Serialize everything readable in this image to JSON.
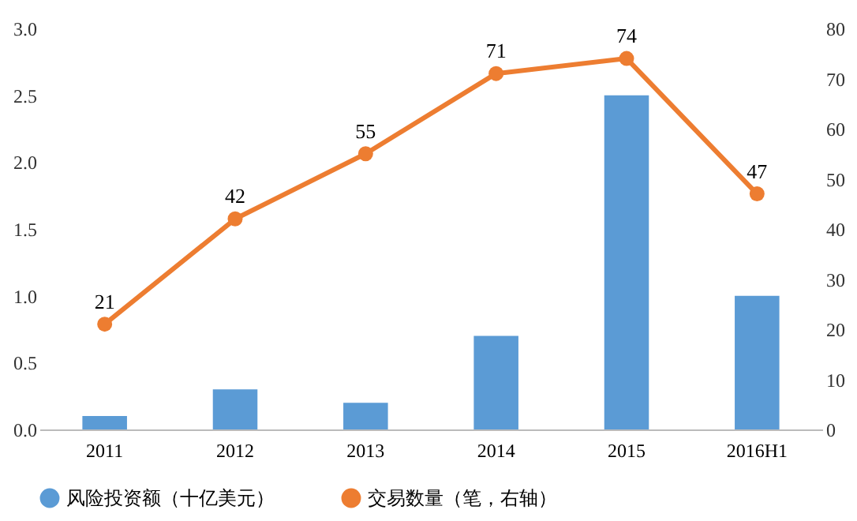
{
  "chart_data": {
    "type": "bar",
    "categories": [
      "2011",
      "2012",
      "2013",
      "2014",
      "2015",
      "2016H1"
    ],
    "series": [
      {
        "name": "风险投资额（十亿美元）",
        "color": "#5b9bd5",
        "values": [
          0.1,
          0.3,
          0.2,
          0.7,
          2.5,
          1.0
        ]
      },
      {
        "name": "交易数量（笔，右轴）",
        "type": "line",
        "axis": "y2",
        "color": "#ed7d31",
        "values": [
          21,
          42,
          55,
          71,
          74,
          47
        ],
        "value_labels": [
          "21",
          "42",
          "55",
          "71",
          "74",
          "47"
        ]
      }
    ],
    "ylim": [
      0,
      3
    ],
    "yticks": [
      {
        "value": 0,
        "label": "0.0"
      },
      {
        "value": 0.5,
        "label": "0.5"
      },
      {
        "value": 1,
        "label": "1.0"
      },
      {
        "value": 1.5,
        "label": "1.5"
      },
      {
        "value": 2,
        "label": "2.0"
      },
      {
        "value": 2.5,
        "label": "2.5"
      },
      {
        "value": 3,
        "label": "3.0"
      }
    ],
    "y2lim": [
      0,
      80
    ],
    "y2ticks": [
      0,
      10,
      20,
      30,
      40,
      50,
      60,
      70,
      80
    ],
    "legend": "bottom",
    "marker": "circle",
    "line_style": "solid",
    "grid": false
  }
}
